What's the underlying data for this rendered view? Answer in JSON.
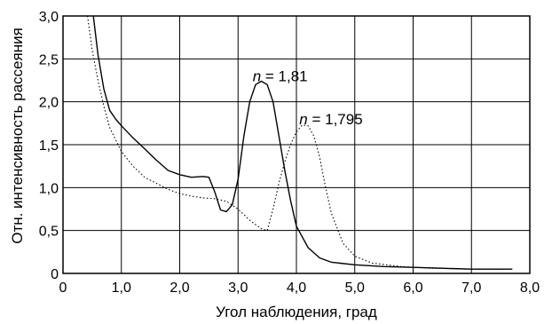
{
  "chart_data": {
    "type": "line",
    "xlabel": "Угол наблюдения, град",
    "ylabel": "Отн. интенсивность рассеяния",
    "xlim": [
      0,
      8
    ],
    "ylim": [
      0,
      3
    ],
    "grid": true,
    "x_ticks": [
      "0",
      "1,0",
      "2,0",
      "3,0",
      "4,0",
      "5,0",
      "6,0",
      "7,0",
      "8,0"
    ],
    "y_ticks": [
      "0",
      "0,5",
      "1,0",
      "1,5",
      "2,0",
      "2,5",
      "3,0"
    ],
    "series": [
      {
        "style": "solid",
        "label_var": "n",
        "label_eq": " = ",
        "label_value": "1,81",
        "label_x": 3.25,
        "label_y": 2.3,
        "points": [
          [
            0.52,
            3.0
          ],
          [
            0.6,
            2.55
          ],
          [
            0.7,
            2.15
          ],
          [
            0.8,
            1.9
          ],
          [
            0.9,
            1.8
          ],
          [
            1.0,
            1.72
          ],
          [
            1.2,
            1.58
          ],
          [
            1.4,
            1.45
          ],
          [
            1.6,
            1.32
          ],
          [
            1.8,
            1.2
          ],
          [
            2.0,
            1.15
          ],
          [
            2.2,
            1.12
          ],
          [
            2.4,
            1.13
          ],
          [
            2.5,
            1.12
          ],
          [
            2.6,
            0.95
          ],
          [
            2.7,
            0.74
          ],
          [
            2.8,
            0.72
          ],
          [
            2.9,
            0.8
          ],
          [
            3.0,
            1.1
          ],
          [
            3.1,
            1.6
          ],
          [
            3.2,
            2.0
          ],
          [
            3.3,
            2.2
          ],
          [
            3.4,
            2.24
          ],
          [
            3.5,
            2.2
          ],
          [
            3.6,
            2.0
          ],
          [
            3.7,
            1.6
          ],
          [
            3.8,
            1.2
          ],
          [
            3.9,
            0.85
          ],
          [
            4.0,
            0.55
          ],
          [
            4.2,
            0.3
          ],
          [
            4.4,
            0.18
          ],
          [
            4.6,
            0.13
          ],
          [
            5.0,
            0.1
          ],
          [
            5.5,
            0.08
          ],
          [
            6.0,
            0.07
          ],
          [
            6.5,
            0.06
          ],
          [
            7.0,
            0.05
          ],
          [
            7.5,
            0.05
          ],
          [
            7.7,
            0.05
          ]
        ]
      },
      {
        "style": "dotted",
        "label_var": "n",
        "label_eq": " = ",
        "label_value": "1,795",
        "label_x": 4.05,
        "label_y": 1.8,
        "points": [
          [
            0.42,
            3.0
          ],
          [
            0.5,
            2.6
          ],
          [
            0.6,
            2.25
          ],
          [
            0.7,
            1.95
          ],
          [
            0.8,
            1.7
          ],
          [
            1.0,
            1.42
          ],
          [
            1.2,
            1.25
          ],
          [
            1.4,
            1.12
          ],
          [
            1.6,
            1.05
          ],
          [
            1.8,
            0.98
          ],
          [
            2.0,
            0.93
          ],
          [
            2.2,
            0.9
          ],
          [
            2.4,
            0.88
          ],
          [
            2.6,
            0.87
          ],
          [
            2.8,
            0.84
          ],
          [
            3.0,
            0.75
          ],
          [
            3.2,
            0.62
          ],
          [
            3.4,
            0.52
          ],
          [
            3.5,
            0.5
          ],
          [
            3.6,
            0.75
          ],
          [
            3.7,
            1.05
          ],
          [
            3.8,
            1.3
          ],
          [
            3.9,
            1.5
          ],
          [
            4.0,
            1.65
          ],
          [
            4.1,
            1.73
          ],
          [
            4.2,
            1.72
          ],
          [
            4.3,
            1.6
          ],
          [
            4.4,
            1.35
          ],
          [
            4.5,
            1.0
          ],
          [
            4.6,
            0.7
          ],
          [
            4.8,
            0.35
          ],
          [
            5.0,
            0.2
          ],
          [
            5.3,
            0.12
          ],
          [
            5.8,
            0.08
          ],
          [
            6.3,
            0.06
          ],
          [
            7.0,
            0.05
          ],
          [
            7.6,
            0.05
          ]
        ]
      }
    ]
  }
}
